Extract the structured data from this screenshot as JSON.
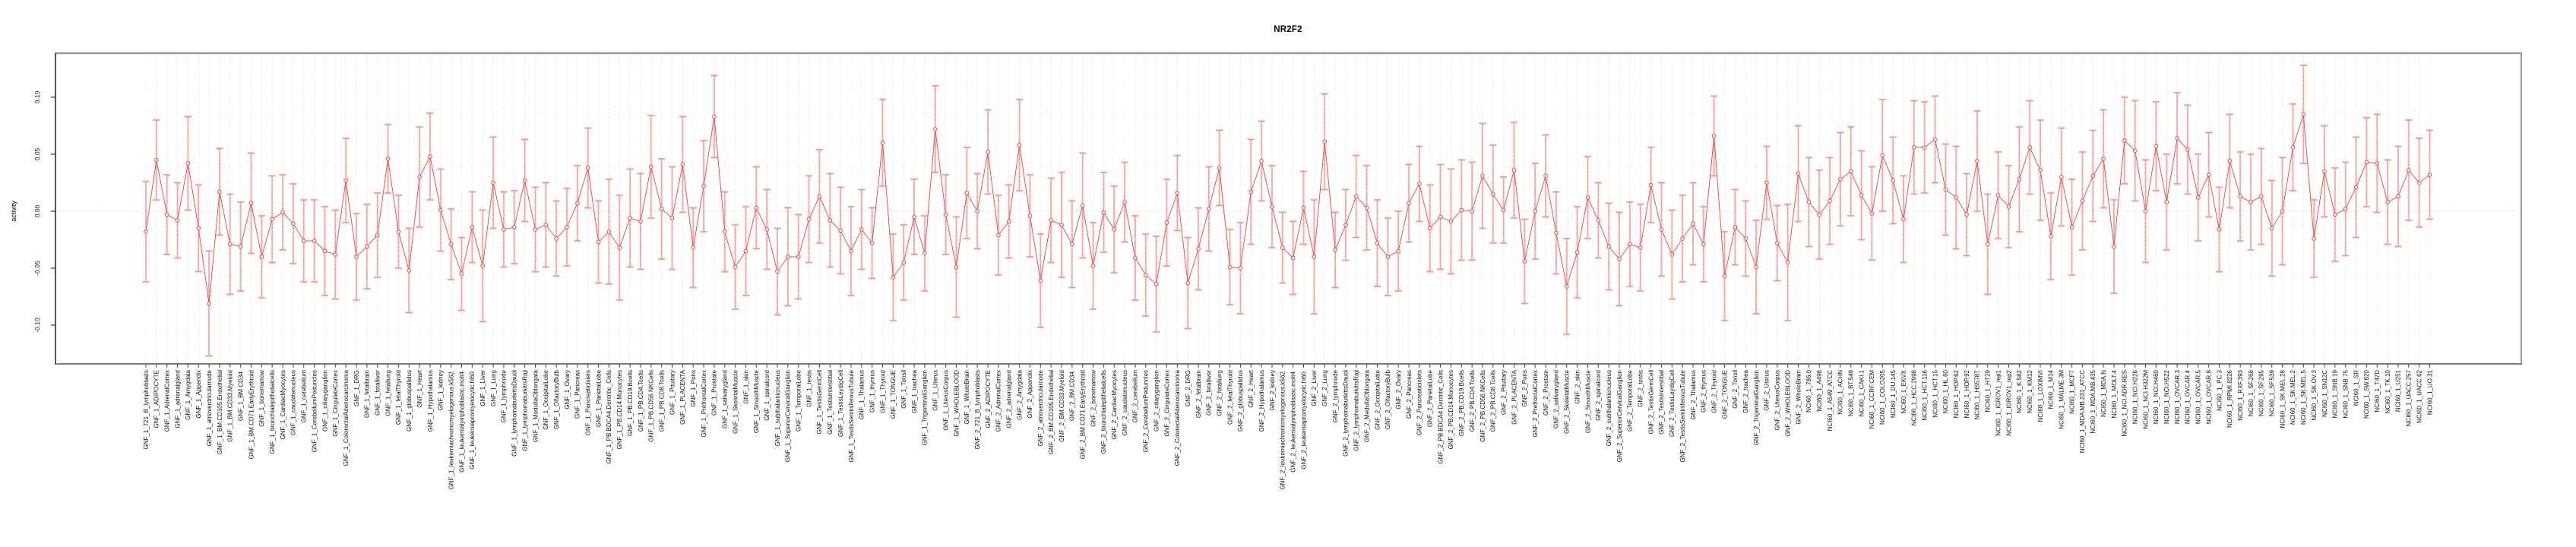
{
  "chart_data": {
    "type": "line",
    "subtype": "errorbar-series",
    "title": "NR2F2",
    "ylabel": "activity",
    "xlabel": "",
    "ylim": [
      -0.134,
      0.139
    ],
    "yticks": [
      {
        "label": "0.10",
        "value": 0.1
      },
      {
        "label": "0.05",
        "value": 0.05
      },
      {
        "label": "0.00",
        "value": 0.0
      },
      {
        "label": "-0.05",
        "value": -0.05
      },
      {
        "label": "-0.10",
        "value": -0.1
      }
    ],
    "grid": {
      "vertical": "dotted per category",
      "horizontal": "dotted at zero"
    },
    "legend": "none",
    "colors": {
      "line": "#e9534d",
      "marker_stroke": "#e9534d",
      "marker_fill": "#ffffff",
      "errorbar_solid": "#f7a2a0",
      "errorbar_dash": "#e25050",
      "gridline": "#d9d9d9",
      "zero_line": "#cfcfcf",
      "box_light": "#9a9a9a",
      "box_dark": "#555555",
      "tick": "#444444",
      "tick_text": "#111111"
    },
    "categories": [
      "GNF_1_721_B_lymphoblasts",
      "GNF_1_ADIPOCYTE",
      "GNF_1_AdrenalCortex",
      "GNF_1_adrenalgland",
      "GNF_1_Amygdala",
      "GNF_1_Appendix",
      "GNF_1_atrioventricularnode",
      "GNF_1_BM.CD105.Endothelial",
      "GNF_1_BM.CD33.Myeloid",
      "GNF_1_BM.CD34.",
      "GNF_1_BM.CD71.EarlyErythroid",
      "GNF_1_bonemarrow",
      "GNF_1_bronchialepithelialcells",
      "GNF_1_CardiacMyocytes",
      "GNF_1_caudatenucleus",
      "GNF_1_cerebellum",
      "GNF_1_CerebellumPeduncles",
      "GNF_1_ciliaryganglion",
      "GNF_1_CingulateCortex",
      "GNF_1_ColorectalAdenocarcinoma",
      "GNF_1_DRG",
      "GNF_1_fetalbrain",
      "GNF_1_fetalliver",
      "GNF_1_fetallung",
      "GNF_1_fetalThyroid",
      "GNF_1_globuspallidus",
      "GNF_1_Heart",
      "GNF_1_Hypothalamus",
      "GNF_1_kidney",
      "GNF_1_leukemiachronicmyelogenous.k562.",
      "GNF_1_leukemialymphoblastic.molt4.",
      "GNF_1_leukemiapromyelocytic.hl60.",
      "GNF_1_Liver",
      "GNF_1_Lung",
      "GNF_1_lymphnode",
      "GNF_1_lymphomaburkittsDaudi",
      "GNF_1_lymphomaburkittsRaji",
      "GNF_1_MedullaOblongata",
      "GNF_1_OccipitalLobe",
      "GNF_1_OlfactoryBulb",
      "GNF_1_Ovary",
      "GNF_1_Pancreas",
      "GNF_1_Pancreaticislets",
      "GNF_1_ParietalLobe",
      "GNF_1_PB.BDCA4.Dentritic_Cells",
      "GNF_1_PB.CD14.Monocytes",
      "GNF_1_PB.CD19.Bcells",
      "GNF_1_PB.CD4.Tcells",
      "GNF_1_PB.CD56.NKCells",
      "GNF_1_PB.CD8.Tcells",
      "GNF_1_Pituitary",
      "GNF_1_PLACENTA",
      "GNF_1_Pons",
      "GNF_1_PrefrontalCortex",
      "GNF_1_Prostate",
      "GNF_1_salivarygland",
      "GNF_1_SkeletalMuscle",
      "GNF_1_skin",
      "GNF_1_SmoothMuscle",
      "GNF_1_spinalcord",
      "GNF_1_subthalamicnucleus",
      "GNF_1_SuperiorCervicalGanglion",
      "GNF_1_TemporalLobe",
      "GNF_1_testis",
      "GNF_1_TestisGermCell",
      "GNF_1_TestisInterstitial",
      "GNF_1_TestisLeydigCell",
      "GNF_1_TestisSeminiferousTubule",
      "GNF_1_Thalamus",
      "GNF_1_thymus",
      "GNF_1_Thyroid",
      "GNF_1_TONGUE",
      "GNF_1_Tonsil",
      "GNF_1_trachea",
      "GNF_1_TrigeminalGanglion",
      "GNF_1_Uterus",
      "GNF_1_UterusCorpus",
      "GNF_1_WHOLEBLOOD",
      "GNF_1_WholeBrain",
      "GNF_2_721_B_lymphoblasts",
      "GNF_2_ADIPOCYTE",
      "GNF_2_AdrenalCortex",
      "GNF_2_adrenalgland",
      "GNF_2_Amygdala",
      "GNF_2_Appendix",
      "GNF_2_atrioventricularnode",
      "GNF_2_BM.CD105.Endothelial",
      "GNF_2_BM.CD33.Myeloid",
      "GNF_2_BM.CD34.",
      "GNF_2_BM.CD71.EarlyErythroid",
      "GNF_2_bonemarrow",
      "GNF_2_bronchialepithelialcells",
      "GNF_2_CardiacMyocytes",
      "GNF_2_caudatenucleus",
      "GNF_2_cerebellum",
      "GNF_2_CerebellumPeduncles",
      "GNF_2_ciliaryganglion",
      "GNF_2_CingulateCortex",
      "GNF_2_ColorectalAdenocarcinoma",
      "GNF_2_DRG",
      "GNF_2_fetalbrain",
      "GNF_2_fetalliver",
      "GNF_2_fetallung",
      "GNF_2_fetalThyroid",
      "GNF_2_globuspallidus",
      "GNF_2_Heart",
      "GNF_2_Hypothalamus",
      "GNF_2_kidney",
      "GNF_2_leukemiachronicmyelogenous.k562.",
      "GNF_2_leukemialymphoblastic.molt4.",
      "GNF_2_leukemiapromyelocytic.hl60.",
      "GNF_2_Liver",
      "GNF_2_Lung",
      "GNF_2_lymphnode",
      "GNF_2_lymphomaburkittsDaudi",
      "GNF_2_lymphomaburkittsRaji",
      "GNF_2_MedullaOblongata",
      "GNF_2_OccipitalLobe",
      "GNF_2_OlfactoryBulb",
      "GNF_2_Ovary",
      "GNF_2_Pancreas",
      "GNF_2_Pancreaticislets",
      "GNF_2_ParietalLobe",
      "GNF_2_PB.BDCA4.Dentritic_Cells",
      "GNF_2_PB.CD14.Monocytes",
      "GNF_2_PB.CD19.Bcells",
      "GNF_2_PB.CD4.Tcells",
      "GNF_2_PB.CD56.NKCells",
      "GNF_2_PB.CD8.Tcells",
      "GNF_2_Pituitary",
      "GNF_2_PLACENTA",
      "GNF_2_Pons",
      "GNF_2_PrefrontalCortex",
      "GNF_2_Prostate",
      "GNF_2_salivarygland",
      "GNF_2_SkeletalMuscle",
      "GNF_2_skin",
      "GNF_2_SmoothMuscle",
      "GNF_2_spinalcord",
      "GNF_2_subthalamicnucleus",
      "GNF_2_SuperiorCervicalGanglion",
      "GNF_2_TemporalLobe",
      "GNF_2_testis",
      "GNF_2_TestisGermCell",
      "GNF_2_TestisInterstitial",
      "GNF_2_TestisLeydigCell",
      "GNF_2_TestisSeminiferousTubule",
      "GNF_2_Thalamus",
      "GNF_2_thymus",
      "GNF_2_Thyroid",
      "GNF_2_TONGUE",
      "GNF_2_Tonsil",
      "GNF_2_trachea",
      "GNF_2_TrigeminalGanglion",
      "GNF_2_Uterus",
      "GNF_2_UterusCorpus",
      "GNF_2_WHOLEBLOOD",
      "GNF_2_WholeBrain",
      "NCI60_1_786.0",
      "NCI60_1_A498",
      "NCI60_1_A549_ATCC",
      "NCI60_1_ACHN",
      "NCI60_1_BT.549",
      "NCI60_1_CAKI.1",
      "NCI60_1_CCRF.CEM",
      "NCI60_1_COLO205",
      "NCI60_1_DU.145",
      "NCI60_1_EKVX",
      "NCI60_1_HCC.2998",
      "NCI60_1_HCT.116",
      "NCI60_1_HCT.15",
      "NCI60_1_HL.60",
      "NCI60_1_HOP.62",
      "NCI60_1_HOP.92",
      "NCI60_1_HS578T",
      "NCI60_1_HT29",
      "NCI60_1_IGROV1_rep1",
      "NCI60_1_IGROV1_rep2",
      "NCI60_1_K.562",
      "NCI60_1_KM12",
      "NCI60_1_LOXIMVI",
      "NCI60_1_M14",
      "NCI60_1_MALME.3M",
      "NCI60_1_MCF7",
      "NCI60_1_MDA.MB.231_ATCC",
      "NCI60_1_MDA.MB.435",
      "NCI60_1_MDA.N",
      "NCI60_1_MOLT.4",
      "NCI60_1_NCI.ADR.RES",
      "NCI60_1_NCI.H226",
      "NCI60_1_NCI.H322M",
      "NCI60_1_NCI.H460",
      "NCI60_1_NCI.H522",
      "NCI60_1_OVCAR.3",
      "NCI60_1_OVCAR.4",
      "NCI60_1_OVCAR.5",
      "NCI60_1_OVCAR.8",
      "NCI60_1_PC.3",
      "NCI60_1_RPMI.8226",
      "NCI60_1_RXF.393",
      "NCI60_1_SF.268",
      "NCI60_1_SF.295",
      "NCI60_1_SF.539",
      "NCI60_1_SK.MEL.28",
      "NCI60_1_SK.MEL.2",
      "NCI60_1_SK.MEL.5",
      "NCI60_1_SK.OV.3",
      "NCI60_1_SN12C",
      "NCI60_1_SNB.19",
      "NCI60_1_SNB.75",
      "NCI60_1_SR",
      "NCI60_1_SW.620",
      "NCI60_1_T47D",
      "NCI60_1_TK.10",
      "NCI60_1_U251",
      "NCI60_1_UACC.257",
      "NCI60_1_UACC.62",
      "NCI60_1_UO.31"
    ],
    "series": [
      {
        "name": "activity",
        "values": [
          -0.018,
          0.045,
          -0.003,
          -0.008,
          0.042,
          -0.015,
          -0.081,
          0.017,
          -0.029,
          -0.031,
          0.007,
          -0.04,
          -0.007,
          -0.001,
          -0.011,
          -0.026,
          -0.026,
          -0.035,
          -0.038,
          0.027,
          -0.04,
          -0.031,
          -0.021,
          0.046,
          -0.018,
          -0.052,
          0.03,
          0.048,
          0.001,
          -0.029,
          -0.055,
          -0.014,
          -0.048,
          0.025,
          -0.016,
          -0.014,
          0.027,
          -0.016,
          -0.012,
          -0.024,
          -0.014,
          0.007,
          0.038,
          -0.027,
          -0.018,
          -0.032,
          -0.006,
          -0.009,
          0.039,
          0.002,
          -0.006,
          0.041,
          -0.032,
          0.022,
          0.083,
          -0.018,
          -0.049,
          -0.035,
          0.003,
          -0.016,
          -0.053,
          -0.04,
          -0.04,
          -0.007,
          0.013,
          -0.008,
          -0.017,
          -0.035,
          -0.016,
          -0.028,
          0.06,
          -0.058,
          -0.045,
          -0.005,
          -0.037,
          0.072,
          -0.003,
          -0.049,
          0.016,
          0.0,
          0.052,
          -0.021,
          -0.009,
          0.058,
          -0.004,
          -0.061,
          -0.008,
          -0.012,
          -0.029,
          0.005,
          -0.048,
          -0.001,
          -0.016,
          0.008,
          -0.041,
          -0.056,
          -0.064,
          -0.01,
          0.016,
          -0.063,
          -0.033,
          0.002,
          0.038,
          -0.049,
          -0.05,
          0.017,
          0.044,
          0.004,
          -0.032,
          -0.041,
          0.003,
          -0.04,
          0.061,
          -0.034,
          -0.012,
          0.013,
          0.003,
          -0.028,
          -0.04,
          -0.035,
          0.007,
          0.024,
          -0.015,
          -0.005,
          -0.009,
          0.001,
          0.0,
          0.031,
          0.015,
          0.001,
          0.036,
          -0.044,
          0.0,
          0.031,
          -0.019,
          -0.066,
          -0.036,
          0.012,
          -0.008,
          -0.031,
          -0.042,
          -0.029,
          -0.032,
          0.023,
          -0.016,
          -0.038,
          -0.024,
          -0.011,
          -0.029,
          0.066,
          -0.057,
          -0.014,
          -0.024,
          -0.049,
          0.025,
          -0.028,
          -0.045,
          0.033,
          0.008,
          -0.003,
          0.009,
          0.028,
          0.035,
          0.014,
          -0.002,
          0.049,
          0.027,
          -0.007,
          0.056,
          0.056,
          0.063,
          0.019,
          0.012,
          -0.003,
          0.044,
          -0.029,
          0.014,
          0.004,
          0.028,
          0.056,
          0.036,
          -0.022,
          0.03,
          -0.014,
          0.009,
          0.031,
          0.046,
          -0.031,
          0.062,
          0.053,
          0.0,
          0.057,
          0.008,
          0.064,
          0.054,
          0.012,
          0.032,
          -0.016,
          0.044,
          0.013,
          0.008,
          0.013,
          -0.015,
          0.0,
          0.056,
          0.085,
          -0.024,
          0.035,
          -0.003,
          0.002,
          0.021,
          0.043,
          0.042,
          0.008,
          0.013,
          0.036,
          0.025,
          0.032
        ],
        "errors": [
          0.044,
          0.035,
          0.035,
          0.033,
          0.041,
          0.038,
          0.046,
          0.038,
          0.044,
          0.039,
          0.044,
          0.036,
          0.038,
          0.033,
          0.035,
          0.036,
          0.036,
          0.039,
          0.039,
          0.037,
          0.038,
          0.037,
          0.037,
          0.03,
          0.032,
          0.037,
          0.044,
          0.038,
          0.036,
          0.031,
          0.032,
          0.031,
          0.049,
          0.04,
          0.033,
          0.032,
          0.036,
          0.037,
          0.037,
          0.033,
          0.034,
          0.033,
          0.035,
          0.036,
          0.046,
          0.046,
          0.043,
          0.042,
          0.045,
          0.044,
          0.045,
          0.042,
          0.035,
          0.04,
          0.036,
          0.035,
          0.037,
          0.039,
          0.036,
          0.035,
          0.038,
          0.043,
          0.037,
          0.038,
          0.041,
          0.041,
          0.038,
          0.039,
          0.035,
          0.031,
          0.038,
          0.038,
          0.033,
          0.033,
          0.033,
          0.038,
          0.035,
          0.044,
          0.04,
          0.033,
          0.037,
          0.035,
          0.032,
          0.04,
          0.036,
          0.041,
          0.037,
          0.046,
          0.038,
          0.046,
          0.038,
          0.035,
          0.038,
          0.035,
          0.037,
          0.036,
          0.042,
          0.038,
          0.033,
          0.04,
          0.036,
          0.037,
          0.033,
          0.033,
          0.04,
          0.046,
          0.035,
          0.036,
          0.031,
          0.032,
          0.032,
          0.05,
          0.042,
          0.033,
          0.031,
          0.036,
          0.037,
          0.038,
          0.034,
          0.035,
          0.034,
          0.033,
          0.038,
          0.046,
          0.046,
          0.044,
          0.043,
          0.046,
          0.043,
          0.029,
          0.042,
          0.037,
          0.042,
          0.036,
          0.036,
          0.042,
          0.04,
          0.036,
          0.033,
          0.038,
          0.041,
          0.037,
          0.038,
          0.033,
          0.041,
          0.039,
          0.038,
          0.036,
          0.033,
          0.035,
          0.039,
          0.033,
          0.033,
          0.041,
          0.032,
          0.033,
          0.051,
          0.042,
          0.039,
          0.039,
          0.038,
          0.041,
          0.039,
          0.039,
          0.041,
          0.049,
          0.038,
          0.038,
          0.041,
          0.04,
          0.038,
          0.04,
          0.045,
          0.036,
          0.044,
          0.044,
          0.038,
          0.036,
          0.046,
          0.041,
          0.044,
          0.038,
          0.043,
          0.042,
          0.043,
          0.04,
          0.043,
          0.041,
          0.038,
          0.044,
          0.045,
          0.039,
          0.042,
          0.04,
          0.039,
          0.038,
          0.037,
          0.037,
          0.041,
          0.039,
          0.042,
          0.042,
          0.042,
          0.047,
          0.038,
          0.043,
          0.034,
          0.04,
          0.041,
          0.041,
          0.044,
          0.039,
          0.043,
          0.037,
          0.044,
          0.044,
          0.039,
          0.039
        ]
      }
    ]
  }
}
